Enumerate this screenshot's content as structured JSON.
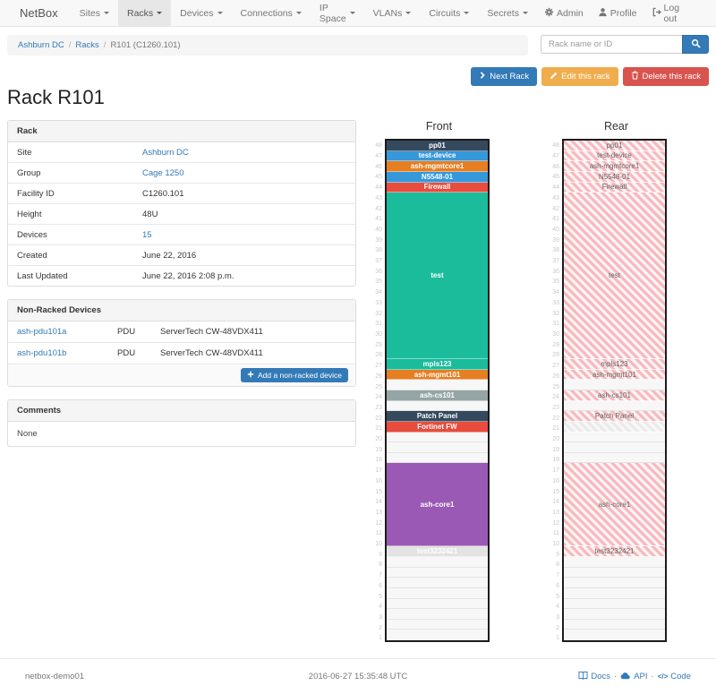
{
  "navbar": {
    "brand": "NetBox",
    "items": [
      "Sites",
      "Racks",
      "Devices",
      "Connections",
      "IP Space",
      "VLANs",
      "Circuits",
      "Secrets"
    ],
    "active_item": "Racks",
    "right_items": [
      {
        "icon": "gear-icon",
        "label": "Admin"
      },
      {
        "icon": "person-icon",
        "label": "Profile"
      },
      {
        "icon": "logout-icon",
        "label": "Log out"
      }
    ]
  },
  "breadcrumb": {
    "separator": "/",
    "items": [
      {
        "label": "Ashburn DC",
        "link": true
      },
      {
        "label": "Racks",
        "link": true
      },
      {
        "label": "R101 (C1260.101)",
        "link": false
      }
    ]
  },
  "search": {
    "placeholder": "Rack name or ID"
  },
  "actions": {
    "next": "Next Rack",
    "edit": "Edit this rack",
    "delete": "Delete this rack"
  },
  "page_title": "Rack R101",
  "rack_panel": {
    "title": "Rack",
    "rows": [
      {
        "label": "Site",
        "value": "Ashburn DC",
        "link": true
      },
      {
        "label": "Group",
        "value": "Cage 1250",
        "link": true
      },
      {
        "label": "Facility ID",
        "value": "C1260.101",
        "link": false
      },
      {
        "label": "Height",
        "value": "48U",
        "link": false
      },
      {
        "label": "Devices",
        "value": "15",
        "link": true
      },
      {
        "label": "Created",
        "value": "June 22, 2016",
        "link": false
      },
      {
        "label": "Last Updated",
        "value": "June 22, 2016 2:08 p.m.",
        "link": false
      }
    ]
  },
  "nonracked_panel": {
    "title": "Non-Racked Devices",
    "devices": [
      {
        "name": "ash-pdu101a",
        "role": "PDU",
        "model": "ServerTech CW-48VDX411"
      },
      {
        "name": "ash-pdu101b",
        "role": "PDU",
        "model": "ServerTech CW-48VDX411"
      }
    ],
    "add_button": "Add a non-racked device"
  },
  "comments_panel": {
    "title": "Comments",
    "body": "None"
  },
  "elevation": {
    "front_title": "Front",
    "rear_title": "Rear",
    "total_units": 48,
    "stripe_pink": "#f8b9bd",
    "stripe_gray": "#eaeaea",
    "devices": [
      {
        "unit": 48,
        "size": 1,
        "label": "pp01",
        "color": "#34495e"
      },
      {
        "unit": 47,
        "size": 1,
        "label": "test-device",
        "color": "#3498db"
      },
      {
        "unit": 46,
        "size": 1,
        "label": "ash-mgmtcore1",
        "color": "#e67e22"
      },
      {
        "unit": 45,
        "size": 1,
        "label": "N5548-01",
        "color": "#3498db"
      },
      {
        "unit": 44,
        "size": 1,
        "label": "Firewall",
        "color": "#e74c3c"
      },
      {
        "unit": 43,
        "size": 16,
        "label": "test",
        "color": "#1abc9c"
      },
      {
        "unit": 27,
        "size": 1,
        "label": "mpls123",
        "color": "#1abc9c"
      },
      {
        "unit": 26,
        "size": 1,
        "label": "ash-mgmt101",
        "color": "#e67e22"
      },
      {
        "unit": 24,
        "size": 1,
        "label": "ash-cs101",
        "color": "#95a5a6"
      },
      {
        "unit": 22,
        "size": 1,
        "label": "Patch Panel",
        "color": "#34495e"
      },
      {
        "unit": 21,
        "size": 1,
        "label": "Fortinet FW",
        "color": "#e74c3c",
        "rear_style": "gray",
        "rear_label": ""
      },
      {
        "unit": 17,
        "size": 8,
        "label": "ash-core1",
        "color": "#9b59b6"
      },
      {
        "unit": 9,
        "size": 1,
        "label": "test3232421",
        "color": "#e3e3e3",
        "text_color": "#ffffff"
      }
    ]
  },
  "footer": {
    "hostname": "netbox-demo01",
    "timestamp": "2016-06-27 15:35:48 UTC",
    "link_separator": "·",
    "links": [
      {
        "label": "Docs",
        "icon": "book-icon"
      },
      {
        "label": "API",
        "icon": "cloud-icon"
      },
      {
        "label": "Code",
        "icon": "code-icon",
        "glyph": "</>"
      }
    ]
  }
}
